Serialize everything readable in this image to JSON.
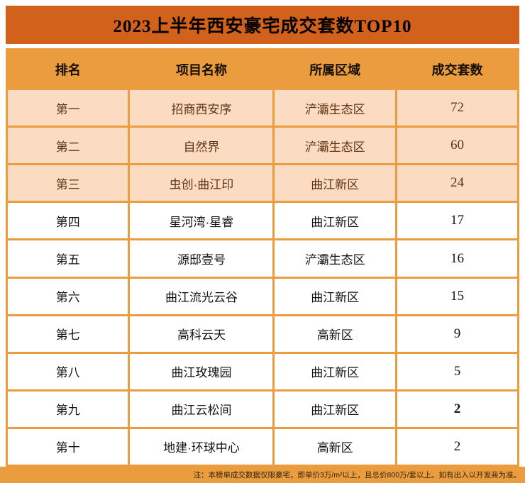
{
  "title": "2023上半年西安豪宅成交套数TOP10",
  "footnote": "注：本榜单成交数据仅限豪宅，即单价3万/m²以上，且总价800万/套以上。如有出入以开发商为准。",
  "colors": {
    "title_bg": "#d2611b",
    "title_text": "#000000",
    "header_bg": "#eb9c3e",
    "header_text": "#141006",
    "border": "#eb9c3e",
    "highlight_row_bg": "#fbdcc2",
    "highlight_text": "#5f3414",
    "row_bg": "#ffffff",
    "body_text": "#141414",
    "footnote_bg": "#eb9c3e",
    "footnote_text": "#2f2410"
  },
  "chart_data": {
    "type": "table",
    "title": "2023上半年西安豪宅成交套数TOP10",
    "columns": [
      "排名",
      "项目名称",
      "所属区域",
      "成交套数"
    ],
    "highlight_rows": [
      0,
      1,
      2
    ],
    "rows": [
      {
        "rank": "第一",
        "project": "招商西安序",
        "district": "浐灞生态区",
        "count": "72",
        "highlight": true,
        "bold_count": false
      },
      {
        "rank": "第二",
        "project": "自然界",
        "district": "浐灞生态区",
        "count": "60",
        "highlight": true,
        "bold_count": false
      },
      {
        "rank": "第三",
        "project": "虫创·曲江印",
        "district": "曲江新区",
        "count": "24",
        "highlight": true,
        "bold_count": false
      },
      {
        "rank": "第四",
        "project": "星河湾·星睿",
        "district": "曲江新区",
        "count": "17",
        "highlight": false,
        "bold_count": false
      },
      {
        "rank": "第五",
        "project": "源邸壹号",
        "district": "浐灞生态区",
        "count": "16",
        "highlight": false,
        "bold_count": false
      },
      {
        "rank": "第六",
        "project": "曲江流光云谷",
        "district": "曲江新区",
        "count": "15",
        "highlight": false,
        "bold_count": false
      },
      {
        "rank": "第七",
        "project": "高科云天",
        "district": "高新区",
        "count": "9",
        "highlight": false,
        "bold_count": false
      },
      {
        "rank": "第八",
        "project": "曲江玫瑰园",
        "district": "曲江新区",
        "count": "5",
        "highlight": false,
        "bold_count": false
      },
      {
        "rank": "第九",
        "project": "曲江云松间",
        "district": "曲江新区",
        "count": "2",
        "highlight": false,
        "bold_count": true
      },
      {
        "rank": "第十",
        "project": "地建·环球中心",
        "district": "高新区",
        "count": "2",
        "highlight": false,
        "bold_count": false
      }
    ]
  }
}
